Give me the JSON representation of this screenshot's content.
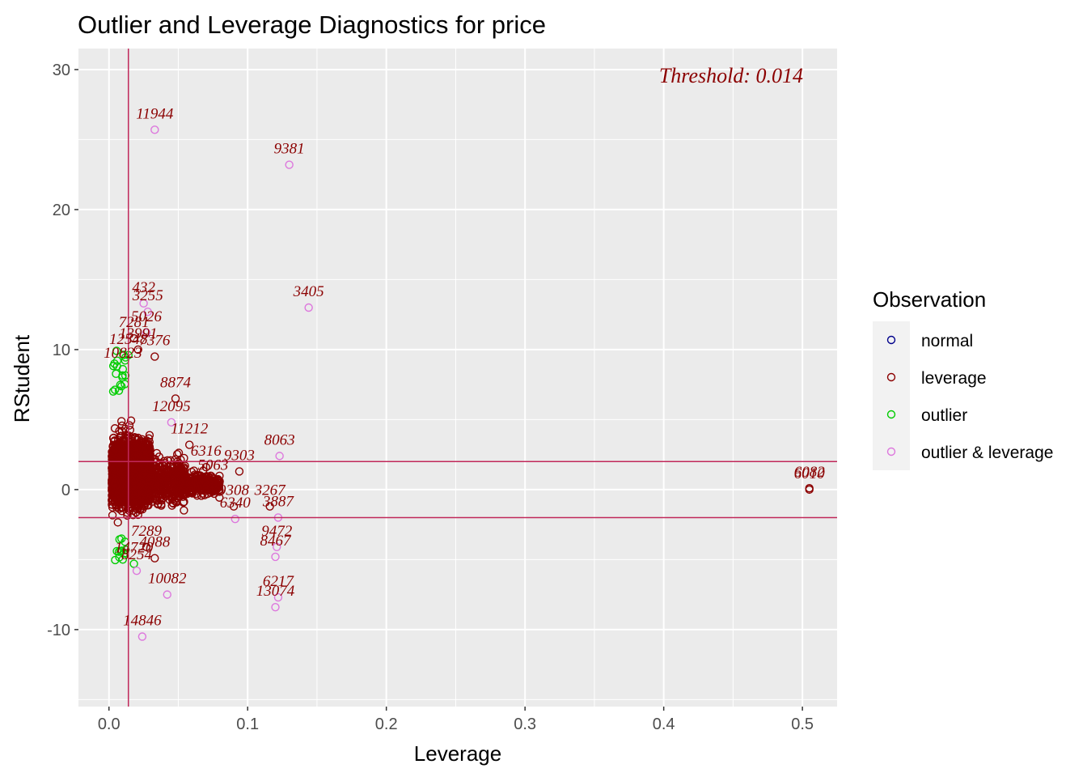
{
  "chart_data": {
    "type": "scatter",
    "title": "Outlier and Leverage Diagnostics for price",
    "xlabel": "Leverage",
    "ylabel": "RStudent",
    "xlim": [
      -0.022,
      0.525
    ],
    "ylim": [
      -15.5,
      31.5
    ],
    "x_ticks": [
      0.0,
      0.1,
      0.2,
      0.3,
      0.4,
      0.5
    ],
    "x_tick_labels": [
      "0.0",
      "0.1",
      "0.2",
      "0.3",
      "0.4",
      "0.5"
    ],
    "y_ticks": [
      -10,
      0,
      10,
      20,
      30
    ],
    "y_tick_labels": [
      "-10",
      "0",
      "10",
      "20",
      "30"
    ],
    "grid": true,
    "threshold_label": "Threshold: 0.014",
    "threshold_x": 0.014,
    "hlines": [
      2,
      -2
    ],
    "legend": {
      "title": "Observation",
      "position": "right",
      "entries": [
        {
          "label": "normal",
          "color": "#00008b"
        },
        {
          "label": "leverage",
          "color": "#8b0000"
        },
        {
          "label": "outlier",
          "color": "#00cc00"
        },
        {
          "label": "outlier & leverage",
          "color": "#dd77dd"
        }
      ]
    },
    "colors": {
      "panel": "#ebebeb",
      "grid": "#ffffff",
      "refline": "#c0285a",
      "label": "#8b0000"
    },
    "labeled_points": [
      {
        "x": 0.033,
        "y": 25.7,
        "label": "11944",
        "group": "outlier & leverage"
      },
      {
        "x": 0.13,
        "y": 23.2,
        "label": "9381",
        "group": "outlier & leverage"
      },
      {
        "x": 0.144,
        "y": 13.0,
        "label": "3405",
        "group": "outlier & leverage"
      },
      {
        "x": 0.123,
        "y": 2.4,
        "label": "8063",
        "group": "outlier & leverage"
      },
      {
        "x": 0.122,
        "y": -2.0,
        "label": "3887",
        "group": "outlier & leverage"
      },
      {
        "x": 0.091,
        "y": -2.1,
        "label": "6340",
        "group": "outlier & leverage"
      },
      {
        "x": 0.121,
        "y": -4.1,
        "label": "9472",
        "group": "outlier & leverage"
      },
      {
        "x": 0.12,
        "y": -4.8,
        "label": "8467",
        "group": "outlier & leverage"
      },
      {
        "x": 0.122,
        "y": -7.7,
        "label": "6217",
        "group": "outlier & leverage"
      },
      {
        "x": 0.12,
        "y": -8.4,
        "label": "13074",
        "group": "outlier & leverage"
      },
      {
        "x": 0.042,
        "y": -7.5,
        "label": "10082",
        "group": "outlier & leverage"
      },
      {
        "x": 0.024,
        "y": -10.5,
        "label": "14846",
        "group": "outlier & leverage"
      },
      {
        "x": 0.505,
        "y": 0.0,
        "label": "6010",
        "group": "leverage"
      },
      {
        "x": 0.505,
        "y": 0.1,
        "label": "6082",
        "group": "leverage"
      },
      {
        "x": 0.028,
        "y": 12.7,
        "label": "3255",
        "group": "outlier & leverage"
      },
      {
        "x": 0.025,
        "y": 13.3,
        "label": "432",
        "group": "outlier & leverage"
      },
      {
        "x": 0.027,
        "y": 11.2,
        "label": "5026",
        "group": "outlier & leverage"
      },
      {
        "x": 0.045,
        "y": 4.8,
        "label": "12095",
        "group": "outlier & leverage"
      },
      {
        "x": 0.048,
        "y": 6.5,
        "label": "8874",
        "group": "leverage"
      },
      {
        "x": 0.058,
        "y": 3.2,
        "label": "11212",
        "group": "leverage"
      },
      {
        "x": 0.094,
        "y": 1.3,
        "label": "9303",
        "group": "leverage"
      },
      {
        "x": 0.116,
        "y": -1.2,
        "label": "3267",
        "group": "leverage"
      },
      {
        "x": 0.09,
        "y": -1.2,
        "label": "9308",
        "group": "leverage"
      },
      {
        "x": 0.033,
        "y": 9.5,
        "label": "7376",
        "group": "leverage"
      },
      {
        "x": 0.018,
        "y": 10.8,
        "label": "7281",
        "group": "leverage"
      },
      {
        "x": 0.021,
        "y": 10.0,
        "label": "13991",
        "group": "leverage"
      },
      {
        "x": 0.014,
        "y": 9.6,
        "label": "12548",
        "group": "outlier"
      },
      {
        "x": 0.01,
        "y": 8.6,
        "label": "10823",
        "group": "outlier"
      },
      {
        "x": 0.027,
        "y": -4.1,
        "label": "7289",
        "group": "leverage"
      },
      {
        "x": 0.033,
        "y": -4.9,
        "label": "4088",
        "group": "leverage"
      },
      {
        "x": 0.018,
        "y": -5.3,
        "label": "14720",
        "group": "outlier"
      },
      {
        "x": 0.02,
        "y": -5.8,
        "label": "8254",
        "group": "outlier & leverage"
      },
      {
        "x": 0.063,
        "y": -0.3,
        "label": "6121",
        "group": "leverage"
      },
      {
        "x": 0.07,
        "y": 1.6,
        "label": "6316",
        "group": "leverage"
      },
      {
        "x": 0.075,
        "y": 0.6,
        "label": "5063",
        "group": "leverage"
      }
    ]
  }
}
